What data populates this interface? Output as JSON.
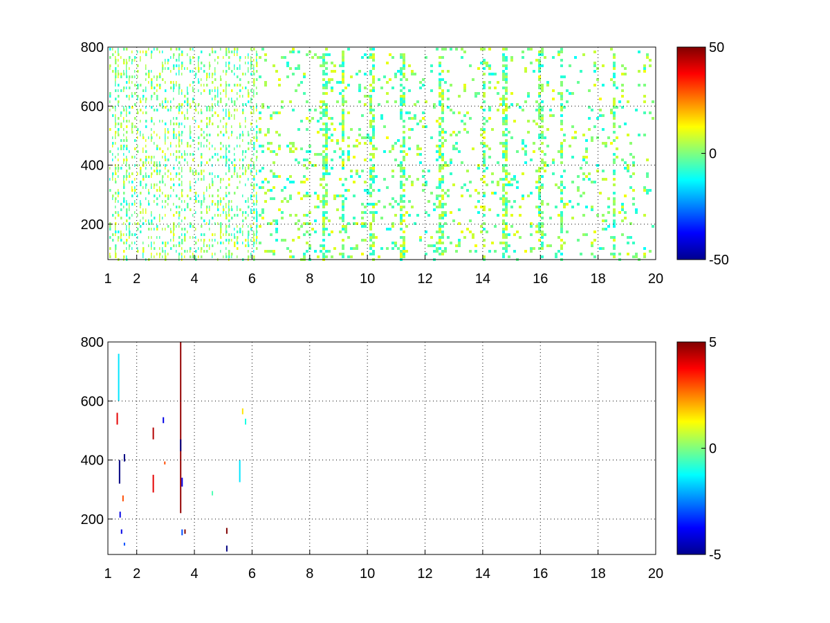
{
  "chart_data": [
    {
      "type": "heatmap",
      "title": "",
      "xlabel": "",
      "ylabel": "",
      "xlim": [
        1,
        20
      ],
      "ylim": [
        80,
        800
      ],
      "x_ticks": [
        "1",
        "2",
        "4",
        "6",
        "8",
        "10",
        "12",
        "14",
        "16",
        "18",
        "20"
      ],
      "x_tick_values": [
        1,
        2,
        4,
        6,
        8,
        10,
        12,
        14,
        16,
        18,
        20
      ],
      "y_ticks": [
        "200",
        "400",
        "600",
        "800"
      ],
      "y_tick_values": [
        200,
        400,
        600,
        800
      ],
      "grid": true,
      "colormap": "jet",
      "color_range": [
        -50,
        50
      ],
      "colorbar_ticks": [
        "50",
        "0",
        "-50"
      ],
      "colorbar_tick_values": [
        50,
        0,
        -50
      ],
      "colorbar_position": "right",
      "sparse_cells_note": "scattered cells; dense columns near x=1.2-6, vertical streaks at ~6, 8.5, 12.5, 14, 16, 18.5",
      "streak_columns": [
        1.3,
        1.6,
        2.5,
        3.5,
        5.1,
        6.1,
        8.5,
        9.1,
        10.1,
        11.2,
        12.5,
        14.0,
        14.7,
        16.0,
        16.7,
        18.5
      ],
      "value_spread": [
        -12,
        12
      ]
    },
    {
      "type": "heatmap",
      "title": "",
      "xlabel": "",
      "ylabel": "",
      "xlim": [
        1,
        20
      ],
      "ylim": [
        80,
        800
      ],
      "x_ticks": [
        "1",
        "2",
        "4",
        "6",
        "8",
        "10",
        "12",
        "14",
        "16",
        "18",
        "20"
      ],
      "x_tick_values": [
        1,
        2,
        4,
        6,
        8,
        10,
        12,
        14,
        16,
        18,
        20
      ],
      "y_ticks": [
        "200",
        "400",
        "600",
        "800"
      ],
      "y_tick_values": [
        200,
        400,
        600,
        800
      ],
      "grid": true,
      "colormap": "jet",
      "color_range": [
        -5,
        5
      ],
      "colorbar_ticks": [
        "5",
        "0",
        "-5"
      ],
      "colorbar_tick_values": [
        5,
        0,
        -5
      ],
      "colorbar_position": "right",
      "cells": [
        {
          "x": 1.35,
          "y0": 600,
          "y1": 760,
          "v": -1.5
        },
        {
          "x": 1.38,
          "y0": 320,
          "y1": 400,
          "v": -5
        },
        {
          "x": 1.4,
          "y0": 205,
          "y1": 225,
          "v": -4
        },
        {
          "x": 1.45,
          "y0": 150,
          "y1": 165,
          "v": -4
        },
        {
          "x": 1.55,
          "y0": 395,
          "y1": 420,
          "v": -5
        },
        {
          "x": 1.55,
          "y0": 110,
          "y1": 120,
          "v": -3
        },
        {
          "x": 1.3,
          "y0": 520,
          "y1": 560,
          "v": 4
        },
        {
          "x": 1.5,
          "y0": 260,
          "y1": 280,
          "v": 3
        },
        {
          "x": 2.55,
          "y0": 470,
          "y1": 510,
          "v": 4.5
        },
        {
          "x": 2.55,
          "y0": 290,
          "y1": 350,
          "v": 4
        },
        {
          "x": 2.9,
          "y0": 525,
          "y1": 545,
          "v": -4
        },
        {
          "x": 2.95,
          "y0": 385,
          "y1": 395,
          "v": 3
        },
        {
          "x": 3.5,
          "y0": 220,
          "y1": 800,
          "v": 4.8
        },
        {
          "x": 3.5,
          "y0": 430,
          "y1": 470,
          "v": -5
        },
        {
          "x": 3.55,
          "y0": 310,
          "y1": 340,
          "v": -4
        },
        {
          "x": 3.55,
          "y0": 145,
          "y1": 165,
          "v": -3
        },
        {
          "x": 3.65,
          "y0": 150,
          "y1": 165,
          "v": 5
        },
        {
          "x": 4.6,
          "y0": 280,
          "y1": 295,
          "v": -0.5
        },
        {
          "x": 5.1,
          "y0": 150,
          "y1": 170,
          "v": 5
        },
        {
          "x": 5.1,
          "y0": 90,
          "y1": 110,
          "v": -5
        },
        {
          "x": 5.55,
          "y0": 325,
          "y1": 400,
          "v": -1.5
        },
        {
          "x": 5.65,
          "y0": 555,
          "y1": 575,
          "v": 1.5
        },
        {
          "x": 5.75,
          "y0": 520,
          "y1": 540,
          "v": -1
        }
      ]
    }
  ]
}
